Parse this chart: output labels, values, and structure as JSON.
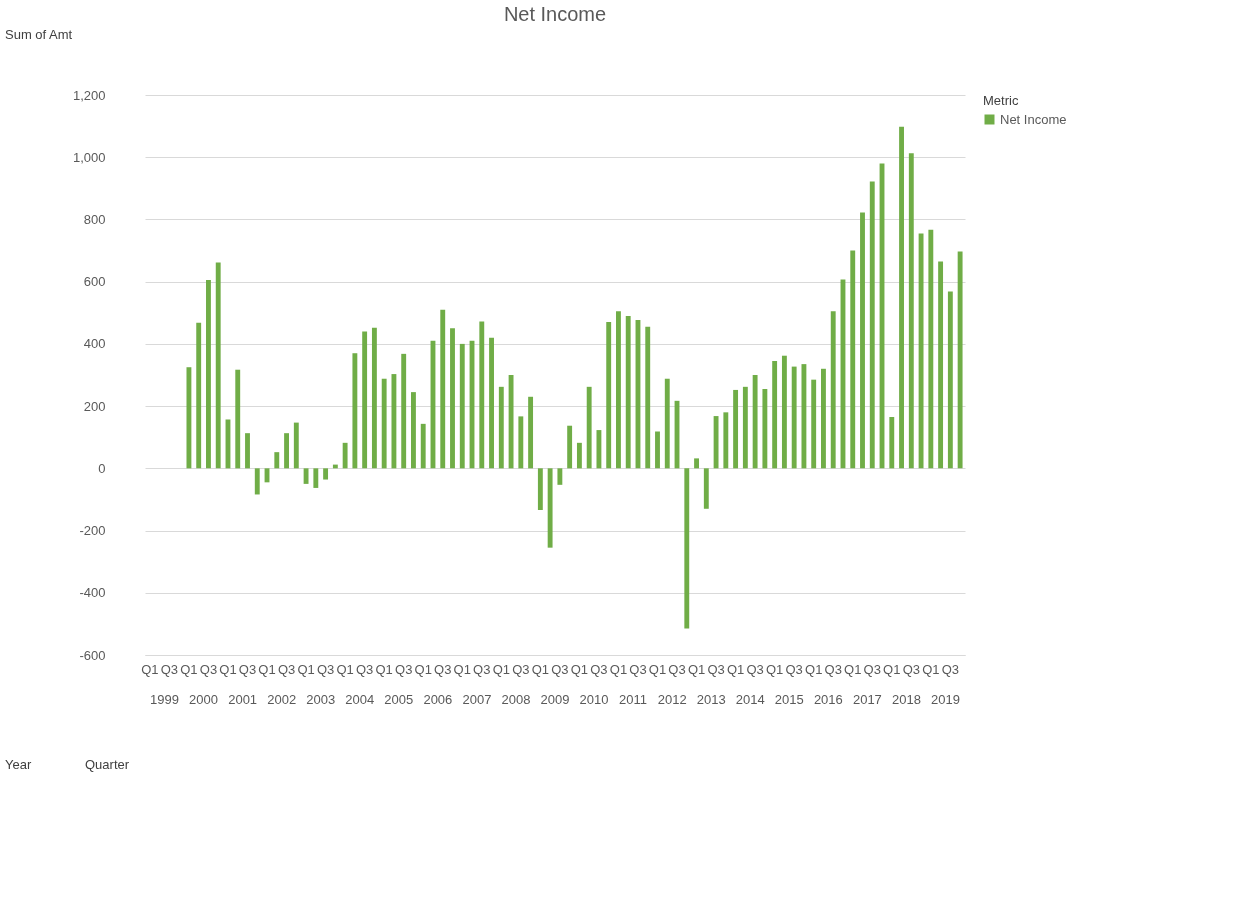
{
  "chart_data": {
    "type": "bar",
    "title": "Net Income",
    "categories": [
      "Q1",
      null,
      "Q3",
      null,
      "Q1",
      null,
      "Q3",
      null,
      "Q1",
      null,
      "Q3",
      null,
      "Q1",
      null,
      "Q3",
      null,
      "Q1",
      null,
      "Q3",
      null,
      "Q1",
      null,
      "Q3",
      null,
      "Q1",
      null,
      "Q3",
      null,
      "Q1",
      null,
      "Q3",
      null,
      "Q1",
      null,
      "Q3",
      null,
      "Q1",
      null,
      "Q3",
      null,
      "Q1",
      null,
      "Q3",
      null,
      "Q1",
      null,
      "Q3",
      null,
      "Q1",
      null,
      "Q3",
      null,
      "Q1",
      null,
      "Q3",
      null,
      "Q1",
      null,
      "Q3",
      null,
      "Q1",
      null,
      "Q3",
      null,
      "Q1",
      null,
      "Q3",
      null,
      "Q1",
      null,
      "Q3",
      null,
      "Q1",
      null,
      "Q3",
      null,
      "Q1",
      null,
      "Q3",
      null,
      "Q1",
      null,
      "Q3",
      null
    ],
    "series": [
      {
        "name": "Net Income",
        "color": "#70ad47",
        "values": [
          null,
          null,
          null,
          null,
          325,
          468,
          605,
          662,
          157,
          317,
          113,
          -84,
          -45,
          52,
          113,
          147,
          -50,
          -63,
          -36,
          12,
          82,
          370,
          440,
          452,
          288,
          303,
          368,
          245,
          143,
          410,
          510,
          450,
          400,
          410,
          472,
          420,
          262,
          300,
          167,
          230,
          -134,
          -255,
          -53,
          137,
          82,
          262,
          123,
          470,
          505,
          490,
          477,
          455,
          118,
          288,
          217,
          -515,
          32,
          -130,
          168,
          180,
          252,
          262,
          300,
          255,
          345,
          362,
          327,
          335,
          285,
          320,
          505,
          607,
          700,
          822,
          922,
          980,
          165,
          1098,
          1013,
          755,
          767,
          665,
          568,
          697
        ]
      }
    ],
    "ylim": [
      -600,
      1200
    ],
    "yticks": [
      -600,
      -400,
      -200,
      0,
      200,
      400,
      600,
      800,
      {
        "value": 1000,
        "label": "1,000"
      },
      {
        "value": 1200,
        "label": "1,200"
      }
    ],
    "grid": "y",
    "legend": "right",
    "legend_title": "Metric",
    "annotations": [
      "Sum of Amt",
      "1999",
      "2000",
      "2001",
      "2002",
      "2003",
      "2004",
      "2005",
      "2006",
      "2007",
      "2008",
      "2009",
      "2010",
      "2011",
      "2012",
      "2013",
      "2014",
      "2015",
      "2016",
      "2017",
      "2018",
      "2019",
      "Year",
      "Quarter"
    ]
  }
}
